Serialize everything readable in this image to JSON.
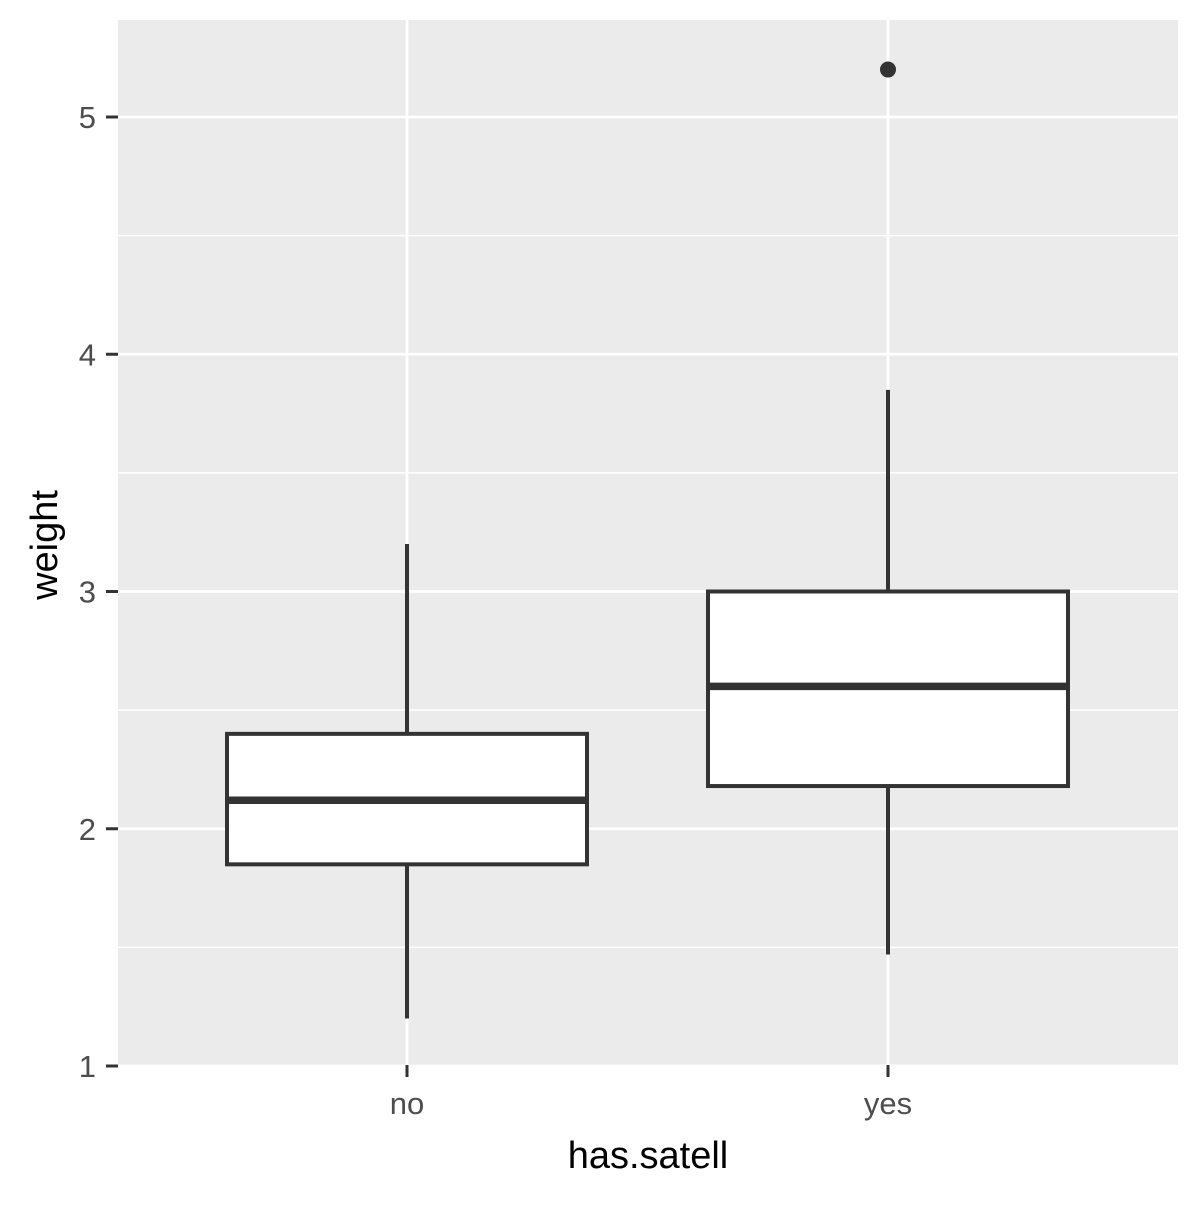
{
  "chart_data": {
    "type": "boxplot",
    "xlabel": "has.satell",
    "ylabel": "weight",
    "categories": [
      "no",
      "yes"
    ],
    "ylim": [
      0.8,
      5.4
    ],
    "yticks": [
      1,
      2,
      3,
      4,
      5
    ],
    "grid": true,
    "boxes": [
      {
        "category": "no",
        "whisker_low": 1.2,
        "q1": 1.85,
        "median": 2.12,
        "q3": 2.4,
        "whisker_high": 3.2,
        "outliers": []
      },
      {
        "category": "yes",
        "whisker_low": 1.47,
        "q1": 2.18,
        "median": 2.6,
        "q3": 3.0,
        "whisker_high": 3.85,
        "outliers": [
          5.2
        ]
      }
    ]
  },
  "colors": {
    "panel_background": "#ebebeb",
    "grid": "#ffffff",
    "box_fill": "#ffffff",
    "box_stroke": "#333333",
    "tick_text": "#4d4d4d",
    "axis_title": "#000000"
  }
}
